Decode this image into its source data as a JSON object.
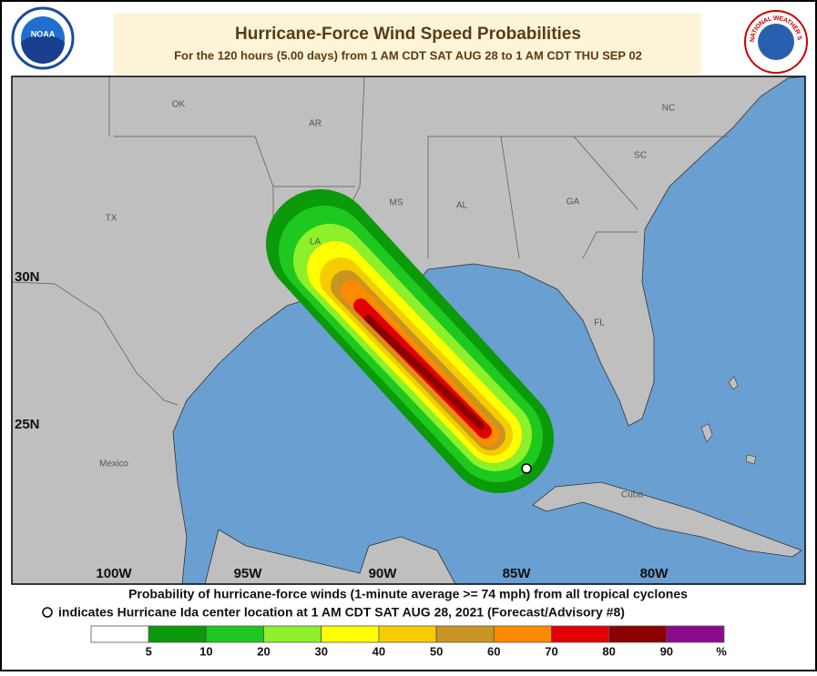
{
  "header": {
    "title": "Hurricane-Force Wind Speed Probabilities",
    "subtitle": "For the 120 hours (5.00 days) from 1 AM CDT SAT AUG 28 to 1 AM CDT THU SEP 02"
  },
  "logos": {
    "noaa": "NOAA",
    "nws": "NATIONAL WEATHER SERVICE"
  },
  "map": {
    "labels": [
      "OK",
      "AR",
      "NC",
      "TX",
      "MS",
      "AL",
      "GA",
      "SC",
      "LA",
      "FL",
      "Mexico",
      "Cuba"
    ],
    "latitude_labels": [
      "30N",
      "25N"
    ],
    "longitude_labels": [
      "100W",
      "95W",
      "90W",
      "85W",
      "80W"
    ]
  },
  "footer": {
    "line1": "Probability of hurricane-force winds (1-minute average >= 74 mph) from all tropical cyclones",
    "line2": "indicates Hurricane Ida center location at 1 AM CDT SAT AUG 28, 2021 (Forecast/Advisory #8)"
  },
  "legend": {
    "colors": [
      "#ffffff",
      "#0a9a0a",
      "#1ec81e",
      "#8cf02a",
      "#ffff00",
      "#f5cc00",
      "#c89620",
      "#ff8a00",
      "#e00000",
      "#8c0000",
      "#8c0a8c"
    ],
    "ticks": [
      5,
      10,
      20,
      30,
      40,
      50,
      60,
      70,
      80,
      90
    ],
    "unit": "%"
  }
}
